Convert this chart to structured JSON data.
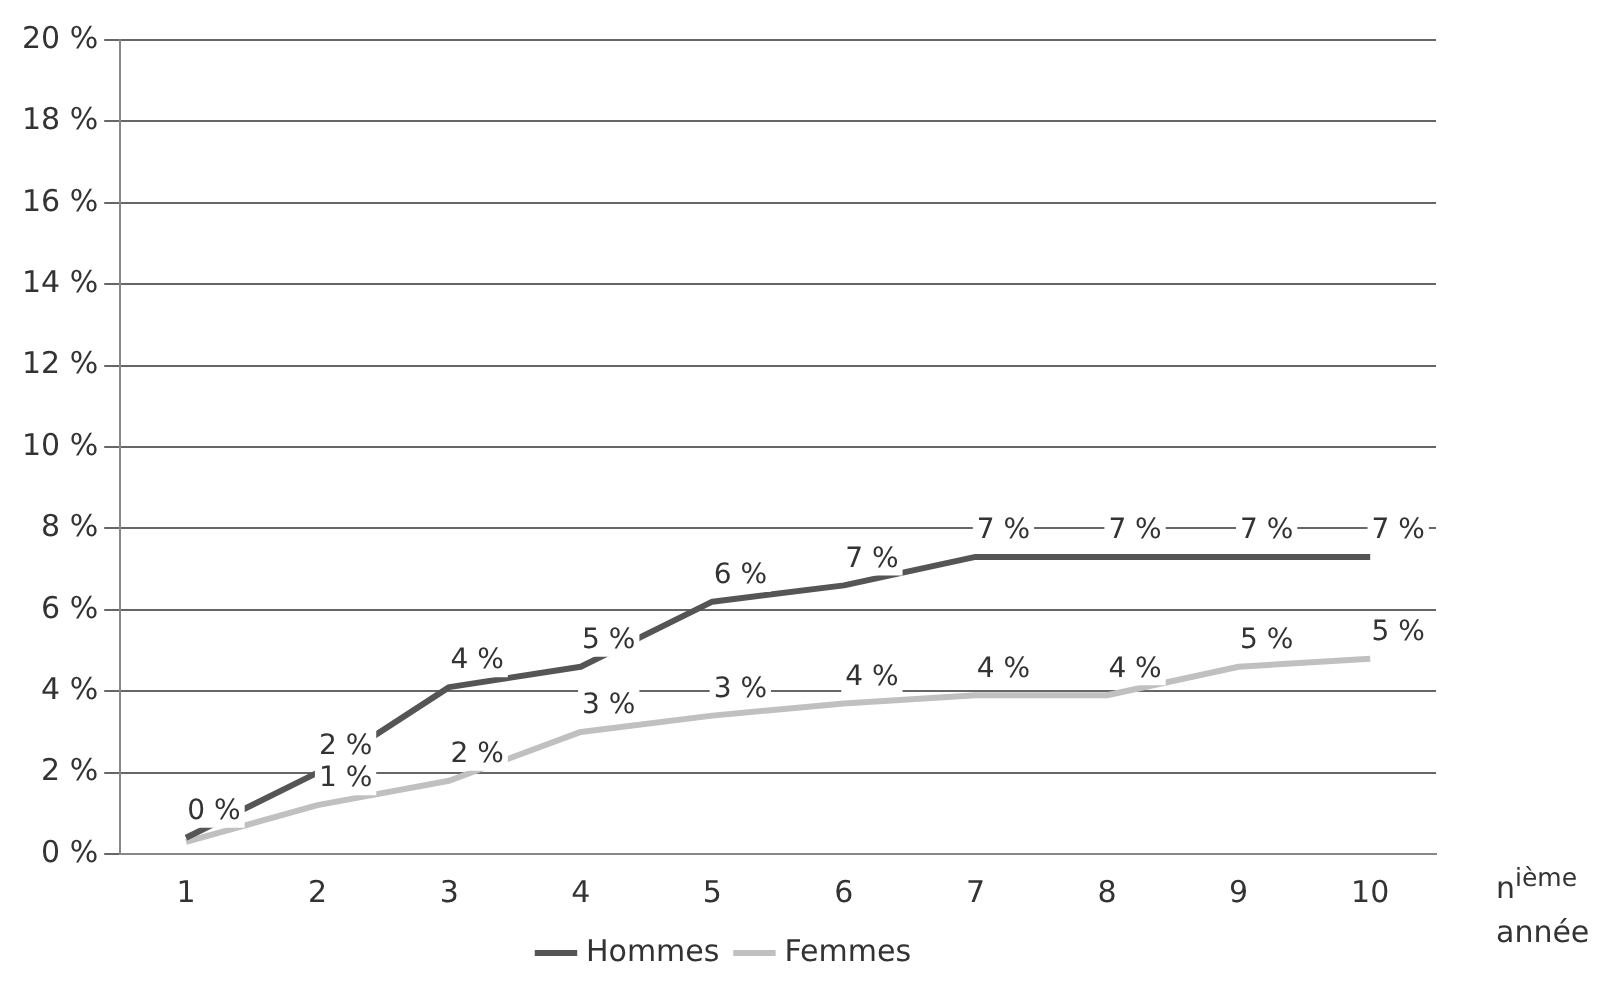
{
  "chart_data": {
    "type": "line",
    "xlabel": "n$^{ième}$ année",
    "categories": [
      "1",
      "2",
      "3",
      "4",
      "5",
      "6",
      "7",
      "8",
      "9",
      "10"
    ],
    "series": [
      {
        "name": "Hommes",
        "color": "#555555",
        "values": [
          0.4,
          2.0,
          4.1,
          4.6,
          6.2,
          6.6,
          7.3,
          7.3,
          7.3,
          7.3
        ],
        "value_labels": [
          "0 %",
          "2 %",
          "4 %",
          "5 %",
          "6 %",
          "7 %",
          "7 %",
          "7 %",
          "7 %",
          "7 %"
        ]
      },
      {
        "name": "Femmes",
        "color": "#c0c0c0",
        "values": [
          0.3,
          1.2,
          1.8,
          3.0,
          3.4,
          3.7,
          3.9,
          3.9,
          4.6,
          4.8
        ],
        "value_labels": [
          null,
          "1 %",
          "2 %",
          "3 %",
          "3 %",
          "4 %",
          "4 %",
          "4 %",
          "5 %",
          "5 %"
        ]
      }
    ],
    "ylim": [
      0,
      20
    ],
    "yticks": [
      {
        "value": 0,
        "label": "0 %"
      },
      {
        "value": 2,
        "label": "2 %"
      },
      {
        "value": 4,
        "label": "4 %"
      },
      {
        "value": 6,
        "label": "6 %"
      },
      {
        "value": 8,
        "label": "8 %"
      },
      {
        "value": 10,
        "label": "10 %"
      },
      {
        "value": 12,
        "label": "12 %"
      },
      {
        "value": 14,
        "label": "14 %"
      },
      {
        "value": 16,
        "label": "16 %"
      },
      {
        "value": 18,
        "label": "18 %"
      },
      {
        "value": 20,
        "label": "20 %"
      }
    ],
    "grid": "y",
    "legend": "bottom",
    "marker": "none",
    "line_style": "solid"
  }
}
